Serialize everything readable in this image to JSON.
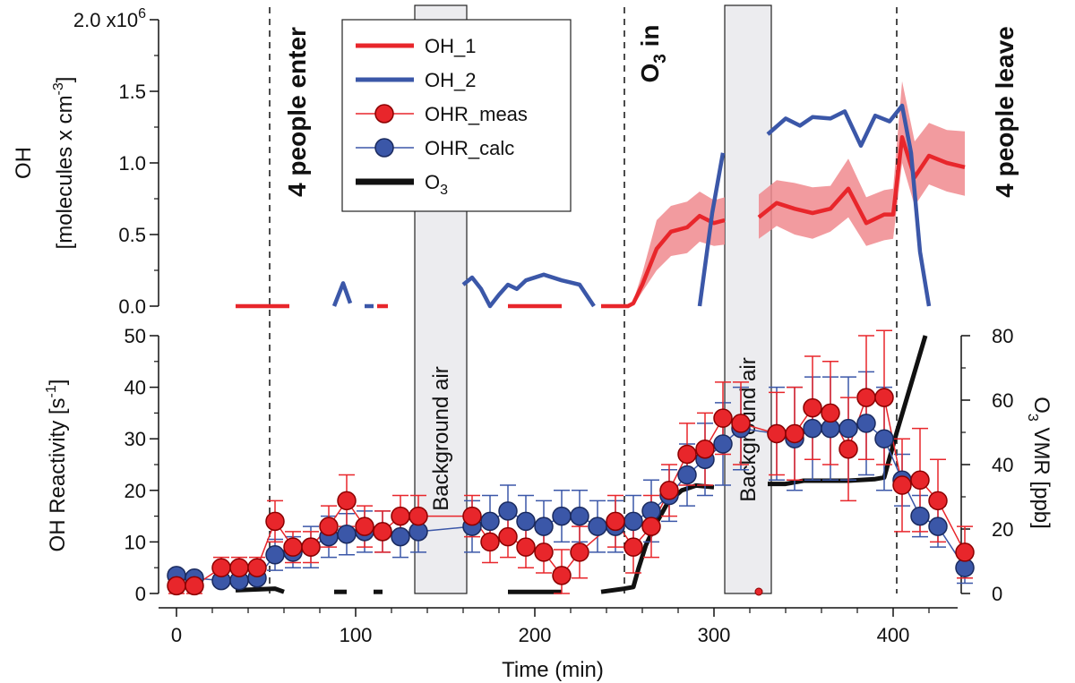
{
  "chart_data": [
    {
      "panel": "top",
      "type": "line",
      "ylabel": "OH",
      "ylabel_units": "[molecules x cm",
      "ylabel_units_exp": "-3",
      "ylabel_units_close": "]",
      "ylim": [
        0,
        2000000
      ],
      "y_ticks": [
        {
          "value": 0,
          "label": "0.0"
        },
        {
          "value": 500000,
          "label": "0.5"
        },
        {
          "value": 1000000,
          "label": "1.0"
        },
        {
          "value": 1500000,
          "label": "1.5"
        },
        {
          "value": 2000000,
          "label": "2.0 x10",
          "exp": "6"
        }
      ],
      "series": [
        {
          "name": "OH_1",
          "color": "#e8262b",
          "segments": [
            [
              [
                33,
                0
              ],
              [
                45,
                0
              ],
              [
                53,
                0
              ],
              [
                63,
                0
              ]
            ],
            [
              [
                112,
                0
              ],
              [
                118,
                0
              ]
            ],
            [
              [
                185,
                0
              ],
              [
                215,
                0
              ]
            ],
            [
              [
                237,
                0
              ],
              [
                252,
                0
              ],
              [
                255,
                20000
              ],
              [
                260,
                150000
              ],
              [
                268,
                400000
              ],
              [
                276,
                520000
              ],
              [
                285,
                550000
              ],
              [
                292,
                630000
              ],
              [
                300,
                580000
              ],
              [
                306,
                600000
              ]
            ],
            [
              [
                325,
                620000
              ],
              [
                335,
                720000
              ],
              [
                345,
                680000
              ],
              [
                355,
                650000
              ],
              [
                365,
                680000
              ],
              [
                375,
                820000
              ],
              [
                385,
                580000
              ],
              [
                395,
                640000
              ],
              [
                400,
                640000
              ],
              [
                405,
                1180000
              ],
              [
                412,
                900000
              ],
              [
                420,
                1050000
              ],
              [
                430,
                1000000
              ],
              [
                440,
                970000
              ]
            ]
          ],
          "band": {
            "color": "#f08a8e",
            "x": [
              255,
              260,
              268,
              276,
              285,
              292,
              300,
              306
            ],
            "lo": [
              0,
              100000,
              250000,
              350000,
              370000,
              450000,
              420000,
              430000
            ],
            "hi": [
              40000,
              230000,
              600000,
              700000,
              730000,
              800000,
              740000,
              760000
            ],
            "x2": [
              325,
              335,
              345,
              355,
              365,
              375,
              385,
              395,
              400,
              405,
              412,
              420,
              430,
              440
            ],
            "lo2": [
              470000,
              560000,
              500000,
              470000,
              520000,
              620000,
              420000,
              460000,
              470000,
              1000000,
              700000,
              850000,
              800000,
              770000
            ],
            "hi2": [
              780000,
              880000,
              860000,
              830000,
              840000,
              1030000,
              760000,
              810000,
              820000,
              1570000,
              1150000,
              1280000,
              1230000,
              1220000
            ]
          }
        },
        {
          "name": "OH_2",
          "color": "#3b57a8",
          "segments": [
            [
              [
                88,
                0
              ],
              [
                93,
                160000
              ],
              [
                97,
                20000
              ]
            ],
            [
              [
                105,
                0
              ],
              [
                110,
                0
              ]
            ],
            [
              [
                160,
                150000
              ],
              [
                165,
                200000
              ],
              [
                170,
                120000
              ],
              [
                175,
                0
              ],
              [
                180,
                80000
              ],
              [
                185,
                150000
              ],
              [
                190,
                120000
              ],
              [
                195,
                180000
              ],
              [
                205,
                220000
              ],
              [
                215,
                180000
              ],
              [
                225,
                150000
              ],
              [
                233,
                0
              ]
            ],
            [
              [
                292,
                0
              ],
              [
                299,
                650000
              ],
              [
                305,
                1070000
              ]
            ],
            [
              [
                330,
                1200000
              ],
              [
                340,
                1310000
              ],
              [
                348,
                1260000
              ],
              [
                355,
                1320000
              ],
              [
                365,
                1310000
              ],
              [
                373,
                1360000
              ],
              [
                382,
                1120000
              ],
              [
                390,
                1330000
              ],
              [
                398,
                1290000
              ],
              [
                405,
                1400000
              ],
              [
                410,
                1070000
              ],
              [
                415,
                380000
              ],
              [
                420,
                0
              ]
            ]
          ]
        }
      ]
    },
    {
      "panel": "bottom",
      "type": "scatter",
      "xlabel": "Time (min)",
      "ylabel": "OH Reactivity [s",
      "ylabel_exp": "-1",
      "ylabel_close": "]",
      "ylim": [
        0,
        50
      ],
      "y2label": "O",
      "y2label_sub": "3",
      "y2label_rest": " VMR [ppb]",
      "y2lim": [
        0,
        80
      ],
      "xlim": [
        -4,
        448
      ],
      "x_ticks": [
        0,
        100,
        200,
        300,
        400
      ],
      "y_ticks": [
        0,
        10,
        20,
        30,
        40,
        50
      ],
      "y2_ticks": [
        0,
        20,
        40,
        60,
        80
      ],
      "series": [
        {
          "name": "OHR_meas",
          "color": "#e8262b",
          "edge": "#8b0000",
          "x": [
            0,
            10,
            25,
            35,
            45,
            55,
            65,
            75,
            85,
            95,
            105,
            115,
            125,
            135,
            165,
            175,
            185,
            195,
            205,
            215,
            225,
            245,
            255,
            265,
            275,
            285,
            295,
            305,
            315,
            335,
            345,
            355,
            365,
            375,
            385,
            395,
            405,
            415,
            425,
            440
          ],
          "y": [
            1.5,
            1.5,
            5,
            5,
            5,
            14,
            9,
            9,
            13,
            18,
            13,
            12,
            15,
            15,
            15,
            10,
            11,
            9,
            8,
            3.5,
            8,
            14,
            9,
            13,
            20,
            27,
            28,
            34,
            33,
            31,
            31,
            36,
            35,
            28,
            38,
            38,
            21,
            22,
            18,
            8
          ],
          "err": [
            1.5,
            1.5,
            2,
            2,
            2,
            4,
            3,
            3,
            4,
            5,
            4,
            4,
            4,
            4,
            4,
            4,
            4,
            4,
            4,
            5,
            5,
            5,
            5,
            6,
            5,
            6,
            7,
            7,
            8,
            8,
            9,
            10,
            10,
            10,
            12,
            13,
            9,
            10,
            8,
            5
          ]
        },
        {
          "name": "OHR_calc",
          "color": "#3b57a8",
          "edge": "#1a2a5e",
          "x": [
            0,
            10,
            25,
            35,
            45,
            55,
            65,
            75,
            85,
            95,
            105,
            115,
            125,
            135,
            165,
            175,
            185,
            195,
            205,
            215,
            225,
            235,
            245,
            255,
            265,
            275,
            285,
            295,
            305,
            315,
            335,
            345,
            355,
            365,
            375,
            385,
            395,
            405,
            415,
            425,
            440
          ],
          "y": [
            3.5,
            3,
            2.5,
            2.5,
            3,
            7.5,
            8,
            9,
            11,
            11.5,
            12,
            12,
            11,
            12,
            13,
            14,
            16,
            14,
            13,
            15,
            15,
            13,
            13,
            14,
            16,
            19,
            23,
            26,
            29,
            32,
            31,
            30,
            32,
            32,
            32,
            33,
            30,
            22,
            15,
            13,
            5
          ],
          "err": [
            1,
            1,
            1,
            1,
            1,
            3,
            3,
            4,
            4,
            4,
            4,
            4,
            4,
            4,
            5,
            5,
            5,
            5,
            5,
            5,
            5,
            5,
            5,
            5,
            6,
            5,
            6,
            7,
            8,
            8,
            9,
            10,
            10,
            10,
            10,
            10,
            10,
            5,
            4,
            4,
            3
          ]
        },
        {
          "name": "O3",
          "color": "#111111",
          "axis": "y2",
          "segments": [
            [
              [
                33,
                1
              ],
              [
                55,
                1.5
              ],
              [
                60,
                0.5
              ]
            ],
            [
              [
                88,
                0.5
              ],
              [
                95,
                0.5
              ]
            ],
            [
              [
                110,
                0.5
              ],
              [
                115,
                0.5
              ]
            ],
            [
              [
                185,
                0.5
              ],
              [
                215,
                0.5
              ]
            ],
            [
              [
                237,
                0.5
              ],
              [
                250,
                1.5
              ],
              [
                255,
                2
              ],
              [
                258,
                8
              ],
              [
                262,
                15
              ],
              [
                268,
                22
              ],
              [
                274,
                28
              ],
              [
                282,
                32
              ],
              [
                290,
                33.5
              ],
              [
                300,
                33
              ]
            ],
            [
              [
                330,
                34
              ],
              [
                340,
                34
              ],
              [
                350,
                35
              ],
              [
                360,
                35
              ],
              [
                375,
                35
              ],
              [
                390,
                35.5
              ],
              [
                395,
                36
              ],
              [
                402,
                50
              ],
              [
                410,
                65
              ],
              [
                418,
                80
              ]
            ]
          ]
        }
      ],
      "background_regions": [
        {
          "x0": 133,
          "x1": 162,
          "label": "Background air"
        },
        {
          "x0": 306,
          "x1": 332,
          "label": "Background air"
        }
      ],
      "annotations": [
        {
          "x": 52,
          "label": "4 people enter"
        },
        {
          "x": 250,
          "label": "O",
          "sub": "3",
          "rest": " in"
        },
        {
          "x": 402,
          "label": "4 people leave"
        }
      ],
      "outliers": [
        {
          "x": 325,
          "y": 0,
          "note": "small marker at x=325"
        }
      ]
    }
  ],
  "legend": [
    {
      "name": "OH_1",
      "color": "#e8262b",
      "marker": "line"
    },
    {
      "name": "OH_2",
      "color": "#3b57a8",
      "marker": "line"
    },
    {
      "name": "OHR_meas",
      "color": "#e8262b",
      "marker": "circle"
    },
    {
      "name": "OHR_calc",
      "color": "#3b57a8",
      "marker": "circle"
    },
    {
      "name": "O",
      "sub": "3",
      "color": "#111111",
      "marker": "thick-line"
    }
  ]
}
